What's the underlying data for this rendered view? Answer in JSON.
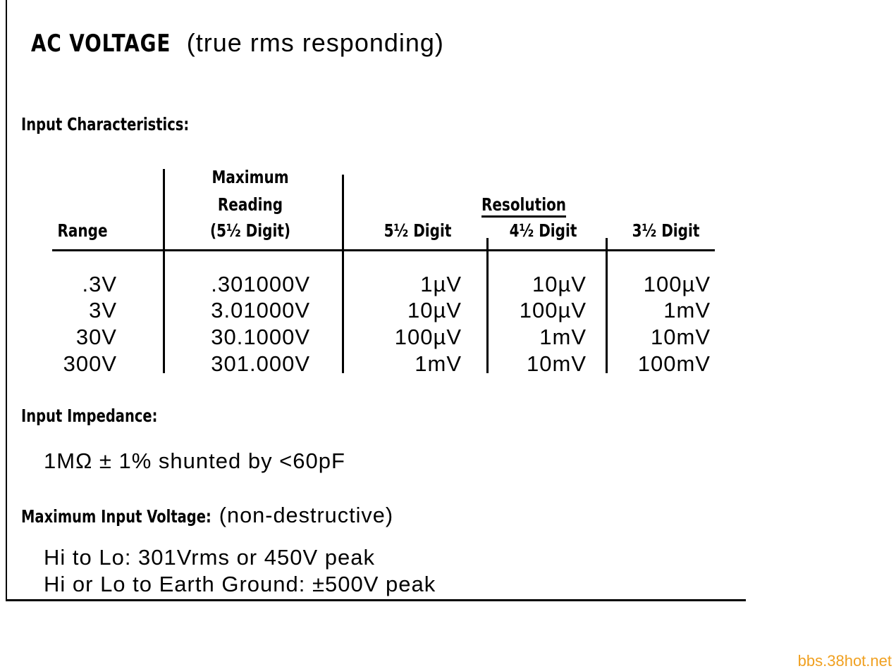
{
  "title": {
    "bold": "AC VOLTAGE",
    "rest": "(true rms responding)"
  },
  "input_characteristics": {
    "heading": "Input Characteristics:",
    "headers": {
      "range": "Range",
      "max_line1": "Maximum",
      "max_line2": "Reading",
      "max_line3": "(5½ Digit)",
      "resolution": "Resolution",
      "d55": "5½ Digit",
      "d45": "4½ Digit",
      "d35": "3½ Digit"
    },
    "rows": [
      {
        "range": ".3V",
        "max": ".301000V",
        "d55": "1µV",
        "d45": "10µV",
        "d35": "100µV"
      },
      {
        "range": "3V",
        "max": "3.01000V",
        "d55": "10µV",
        "d45": "100µV",
        "d35": "1mV"
      },
      {
        "range": "30V",
        "max": "30.1000V",
        "d55": "100µV",
        "d45": "1mV",
        "d35": "10mV"
      },
      {
        "range": "300V",
        "max": "301.000V",
        "d55": "1mV",
        "d45": "10mV",
        "d35": "100mV"
      }
    ]
  },
  "input_impedance": {
    "heading": "Input Impedance:",
    "value": "1MΩ ± 1% shunted by <60pF"
  },
  "max_input_voltage": {
    "heading": "Maximum Input Voltage:",
    "note": "(non-destructive)",
    "line1": "Hi to Lo:  301Vrms or 450V peak",
    "line2": "Hi or Lo to Earth Ground:  ±500V peak"
  },
  "watermark": "bbs.38hot.net"
}
